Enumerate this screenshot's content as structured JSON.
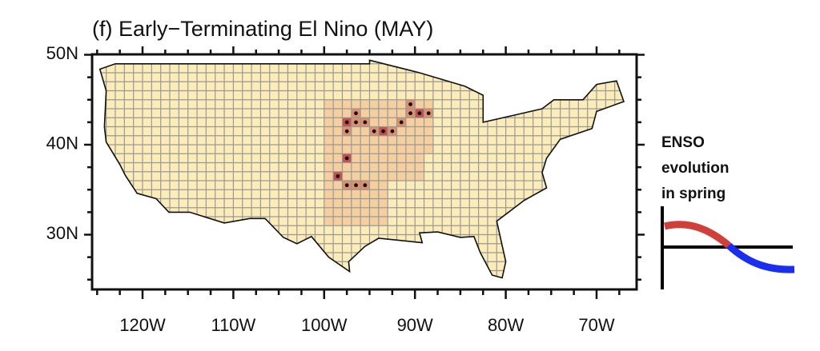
{
  "header": {
    "title": "(f) Early−Terminating El Nino (MAY)"
  },
  "axes": {
    "lat_labels": [
      "50N",
      "40N",
      "30N"
    ],
    "lon_labels": [
      "120W",
      "110W",
      "100W",
      "90W",
      "80W",
      "70W"
    ]
  },
  "inset": {
    "lines": [
      "ENSO",
      "evolution",
      "in spring"
    ]
  }
}
